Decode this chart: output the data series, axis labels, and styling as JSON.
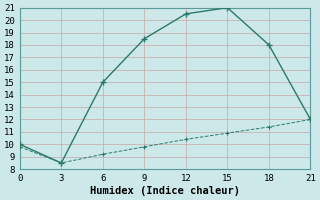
{
  "xlabel": "Humidex (Indice chaleur)",
  "bg_color": "#cce8e8",
  "grid_color_major": "#b8d8d8",
  "grid_color_minor": "#d8ecec",
  "line_color": "#2a7a6a",
  "line1_x": [
    0,
    3,
    6,
    9,
    12,
    15,
    18,
    21
  ],
  "line1_y": [
    10.0,
    8.5,
    15.0,
    18.5,
    20.5,
    21.0,
    18.0,
    12.0
  ],
  "line2_x": [
    0,
    3,
    6,
    9,
    12,
    15,
    18,
    21
  ],
  "line2_y": [
    9.8,
    8.5,
    9.2,
    9.8,
    10.4,
    10.9,
    11.4,
    12.0
  ],
  "xlim": [
    0,
    21
  ],
  "ylim": [
    8,
    21
  ],
  "xticks": [
    0,
    3,
    6,
    9,
    12,
    15,
    18,
    21
  ],
  "yticks": [
    8,
    9,
    10,
    11,
    12,
    13,
    14,
    15,
    16,
    17,
    18,
    19,
    20,
    21
  ],
  "font_family": "monospace",
  "xlabel_fontsize": 7.5,
  "tick_fontsize": 6.5
}
